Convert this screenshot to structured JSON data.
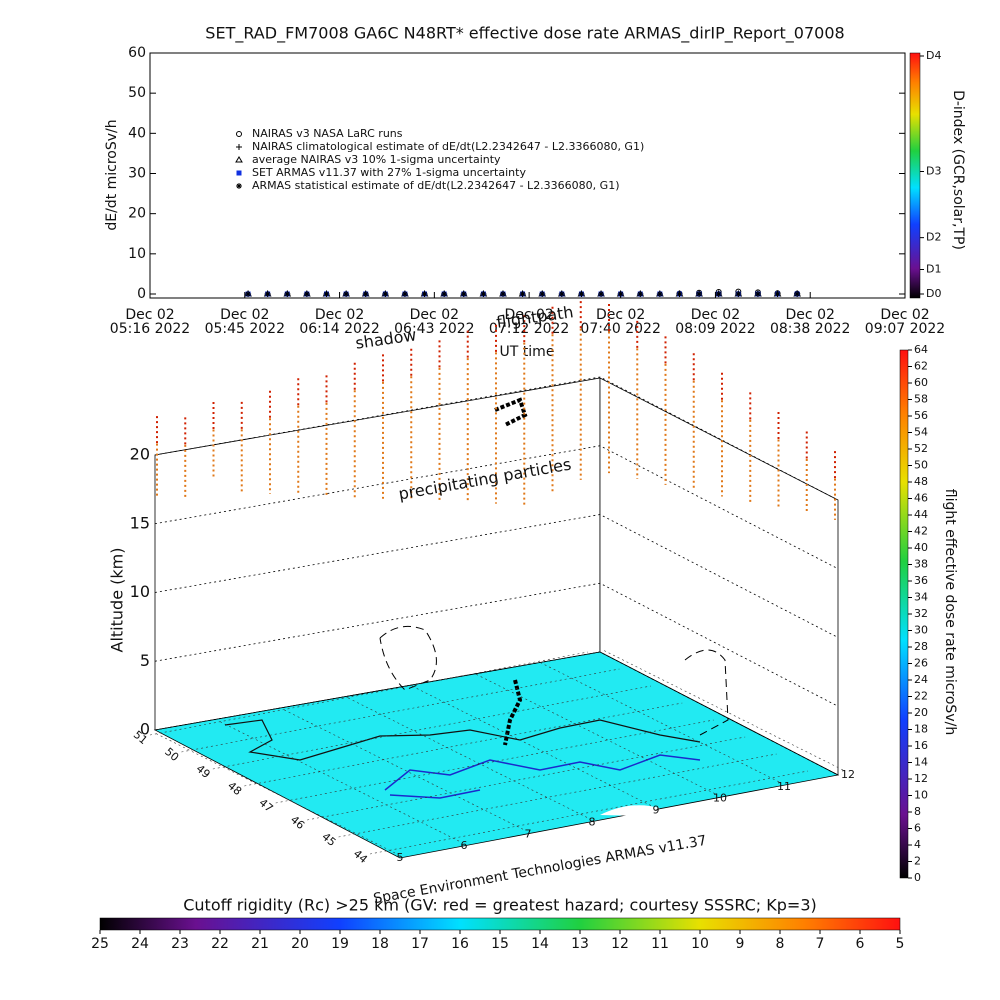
{
  "chart_data": [
    {
      "type": "scatter",
      "title": "SET_RAD_FM7008  GA6C N48RT* effective dose rate ARMAS_dirIP_Report_07008",
      "ylabel": "dE/dt microSv/h",
      "xlabel": "UT time",
      "xtick_date": "Dec 02",
      "xlim": [
        0,
        231
      ],
      "xticks": [
        {
          "value": 0,
          "label": "05:16 2022"
        },
        {
          "value": 29,
          "label": "05:45 2022"
        },
        {
          "value": 58,
          "label": "06:14 2022"
        },
        {
          "value": 87,
          "label": "06:43 2022"
        },
        {
          "value": 116,
          "label": "07:12 2022"
        },
        {
          "value": 144,
          "label": "07:40 2022"
        },
        {
          "value": 173,
          "label": "08:09 2022"
        },
        {
          "value": 202,
          "label": "08:38 2022"
        },
        {
          "value": 231,
          "label": "09:07 2022"
        }
      ],
      "ylim": [
        0,
        60
      ],
      "yticks": [
        0,
        10,
        20,
        30,
        40,
        50,
        60
      ],
      "x": [
        30,
        36,
        42,
        48,
        54,
        60,
        66,
        72,
        78,
        84,
        90,
        96,
        102,
        108,
        114,
        120,
        126,
        132,
        138,
        144,
        150,
        156,
        162,
        168,
        174,
        180,
        186,
        192,
        198
      ],
      "series": [
        {
          "name": "NAIRAS v3 NASA LaRC runs",
          "marker": "circle",
          "color": "#000000",
          "values": [
            null,
            null,
            null,
            null,
            null,
            null,
            null,
            null,
            null,
            null,
            null,
            null,
            null,
            null,
            null,
            null,
            null,
            null,
            null,
            null,
            null,
            null,
            0.1,
            0.3,
            0.5,
            0.6,
            0.4,
            0.2,
            0.1
          ]
        },
        {
          "name": "NAIRAS climatological estimate of dE/dt(L2.2342647 - L2.3366080, G1)",
          "marker": "plus",
          "color": "#000000",
          "values": [
            0,
            0,
            0,
            0,
            0,
            0,
            0,
            0,
            0,
            0,
            0,
            0,
            0,
            0,
            0,
            0,
            0,
            0,
            0,
            0,
            0,
            0,
            0,
            0,
            0,
            0,
            0,
            0,
            0
          ]
        },
        {
          "name": "average NAIRAS v3 10% 1-sigma uncertainty",
          "marker": "triangle",
          "color": "#000000",
          "values": [
            0,
            0,
            0,
            0,
            0,
            0,
            0,
            0,
            0,
            0,
            0,
            0,
            0,
            0,
            0,
            0,
            0,
            0,
            0,
            0,
            0,
            0,
            0,
            0,
            0,
            0,
            0,
            0,
            0
          ]
        },
        {
          "name": "SET ARMAS v11.37 with 27% 1-sigma uncertainty",
          "marker": "square",
          "color": "#1030e0",
          "values": [
            0,
            0,
            0,
            0,
            0,
            0,
            0,
            0,
            0,
            0,
            0,
            0,
            0,
            0,
            0,
            0,
            0,
            0,
            0,
            0,
            0,
            0,
            0,
            0,
            0,
            0,
            0,
            0,
            0
          ]
        },
        {
          "name": "ARMAS statistical estimate of dE/dt(L2.2342647 - L2.3366080, G1)",
          "marker": "asterisk",
          "color": "#000000",
          "values": [
            0,
            0,
            0,
            0,
            0,
            0,
            0,
            0,
            0,
            0,
            0,
            0,
            0,
            0,
            0,
            0,
            0,
            0,
            0,
            0,
            0,
            0,
            0,
            0,
            0,
            0,
            0,
            0,
            0
          ]
        }
      ],
      "colorbar": {
        "label": "D-index (GCR,solar,TP)",
        "lim": [
          0,
          1
        ],
        "ticks": [
          {
            "value": 0,
            "label": "D0"
          },
          {
            "value": 0.1,
            "label": "D1"
          },
          {
            "value": 0.23,
            "label": "D2"
          },
          {
            "value": 0.5,
            "label": "D3"
          },
          {
            "value": 1,
            "label": "D4"
          }
        ]
      }
    },
    {
      "type": "scatter3d",
      "annotations": [
        "shadow",
        "flightpath",
        "precipitating particles"
      ],
      "zlabel": "Altitude (km)",
      "zlim": [
        0,
        20
      ],
      "zticks": [
        0,
        5,
        10,
        15,
        20
      ],
      "xlim": [
        5,
        12
      ],
      "xticks": [
        5,
        6,
        7,
        8,
        9,
        10,
        11,
        12
      ],
      "ylim": [
        44,
        51
      ],
      "yticks": [
        44,
        45,
        46,
        47,
        48,
        49,
        50,
        51
      ],
      "credit": "Space Environment Technologies ARMAS v11.37",
      "floor_color": "#22eaf2",
      "columns": {
        "color": "#e07818",
        "top_color": "#d02000",
        "tops": [
          22.8,
          22.3,
          23,
          22.6,
          23,
          23.5,
          23.3,
          23.8,
          24,
          24,
          24.2,
          24.5,
          24.5,
          24.8,
          25,
          25,
          24.8,
          24.5,
          24.3,
          24,
          23.5,
          23,
          22.5,
          22,
          21.5
        ],
        "bottoms": [
          17,
          16.5,
          17.5,
          16,
          15.5,
          15,
          14.5,
          14,
          13.5,
          13,
          12.5,
          12,
          11.5,
          11,
          11.5,
          12,
          12.5,
          13,
          13.5,
          14,
          14.5,
          15,
          15.5,
          16,
          16.5
        ]
      },
      "colorbar": {
        "label": "flight effective dose rate microSv/h",
        "lim": [
          0,
          64
        ],
        "ticks": [
          0,
          2,
          4,
          6,
          8,
          10,
          12,
          14,
          16,
          18,
          20,
          22,
          24,
          26,
          28,
          30,
          32,
          34,
          36,
          38,
          40,
          42,
          44,
          46,
          48,
          50,
          52,
          54,
          56,
          58,
          60,
          62,
          64
        ]
      },
      "floor_colorbar": {
        "label": "Cutoff rigidity (Rc) >25 km (GV: red = greatest hazard; courtesy SSSRC; Kp=3)",
        "lim": [
          25,
          5
        ],
        "ticks": [
          25,
          24,
          23,
          22,
          21,
          20,
          19,
          18,
          17,
          16,
          15,
          14,
          13,
          12,
          11,
          10,
          9,
          8,
          7,
          6,
          5
        ]
      }
    }
  ]
}
